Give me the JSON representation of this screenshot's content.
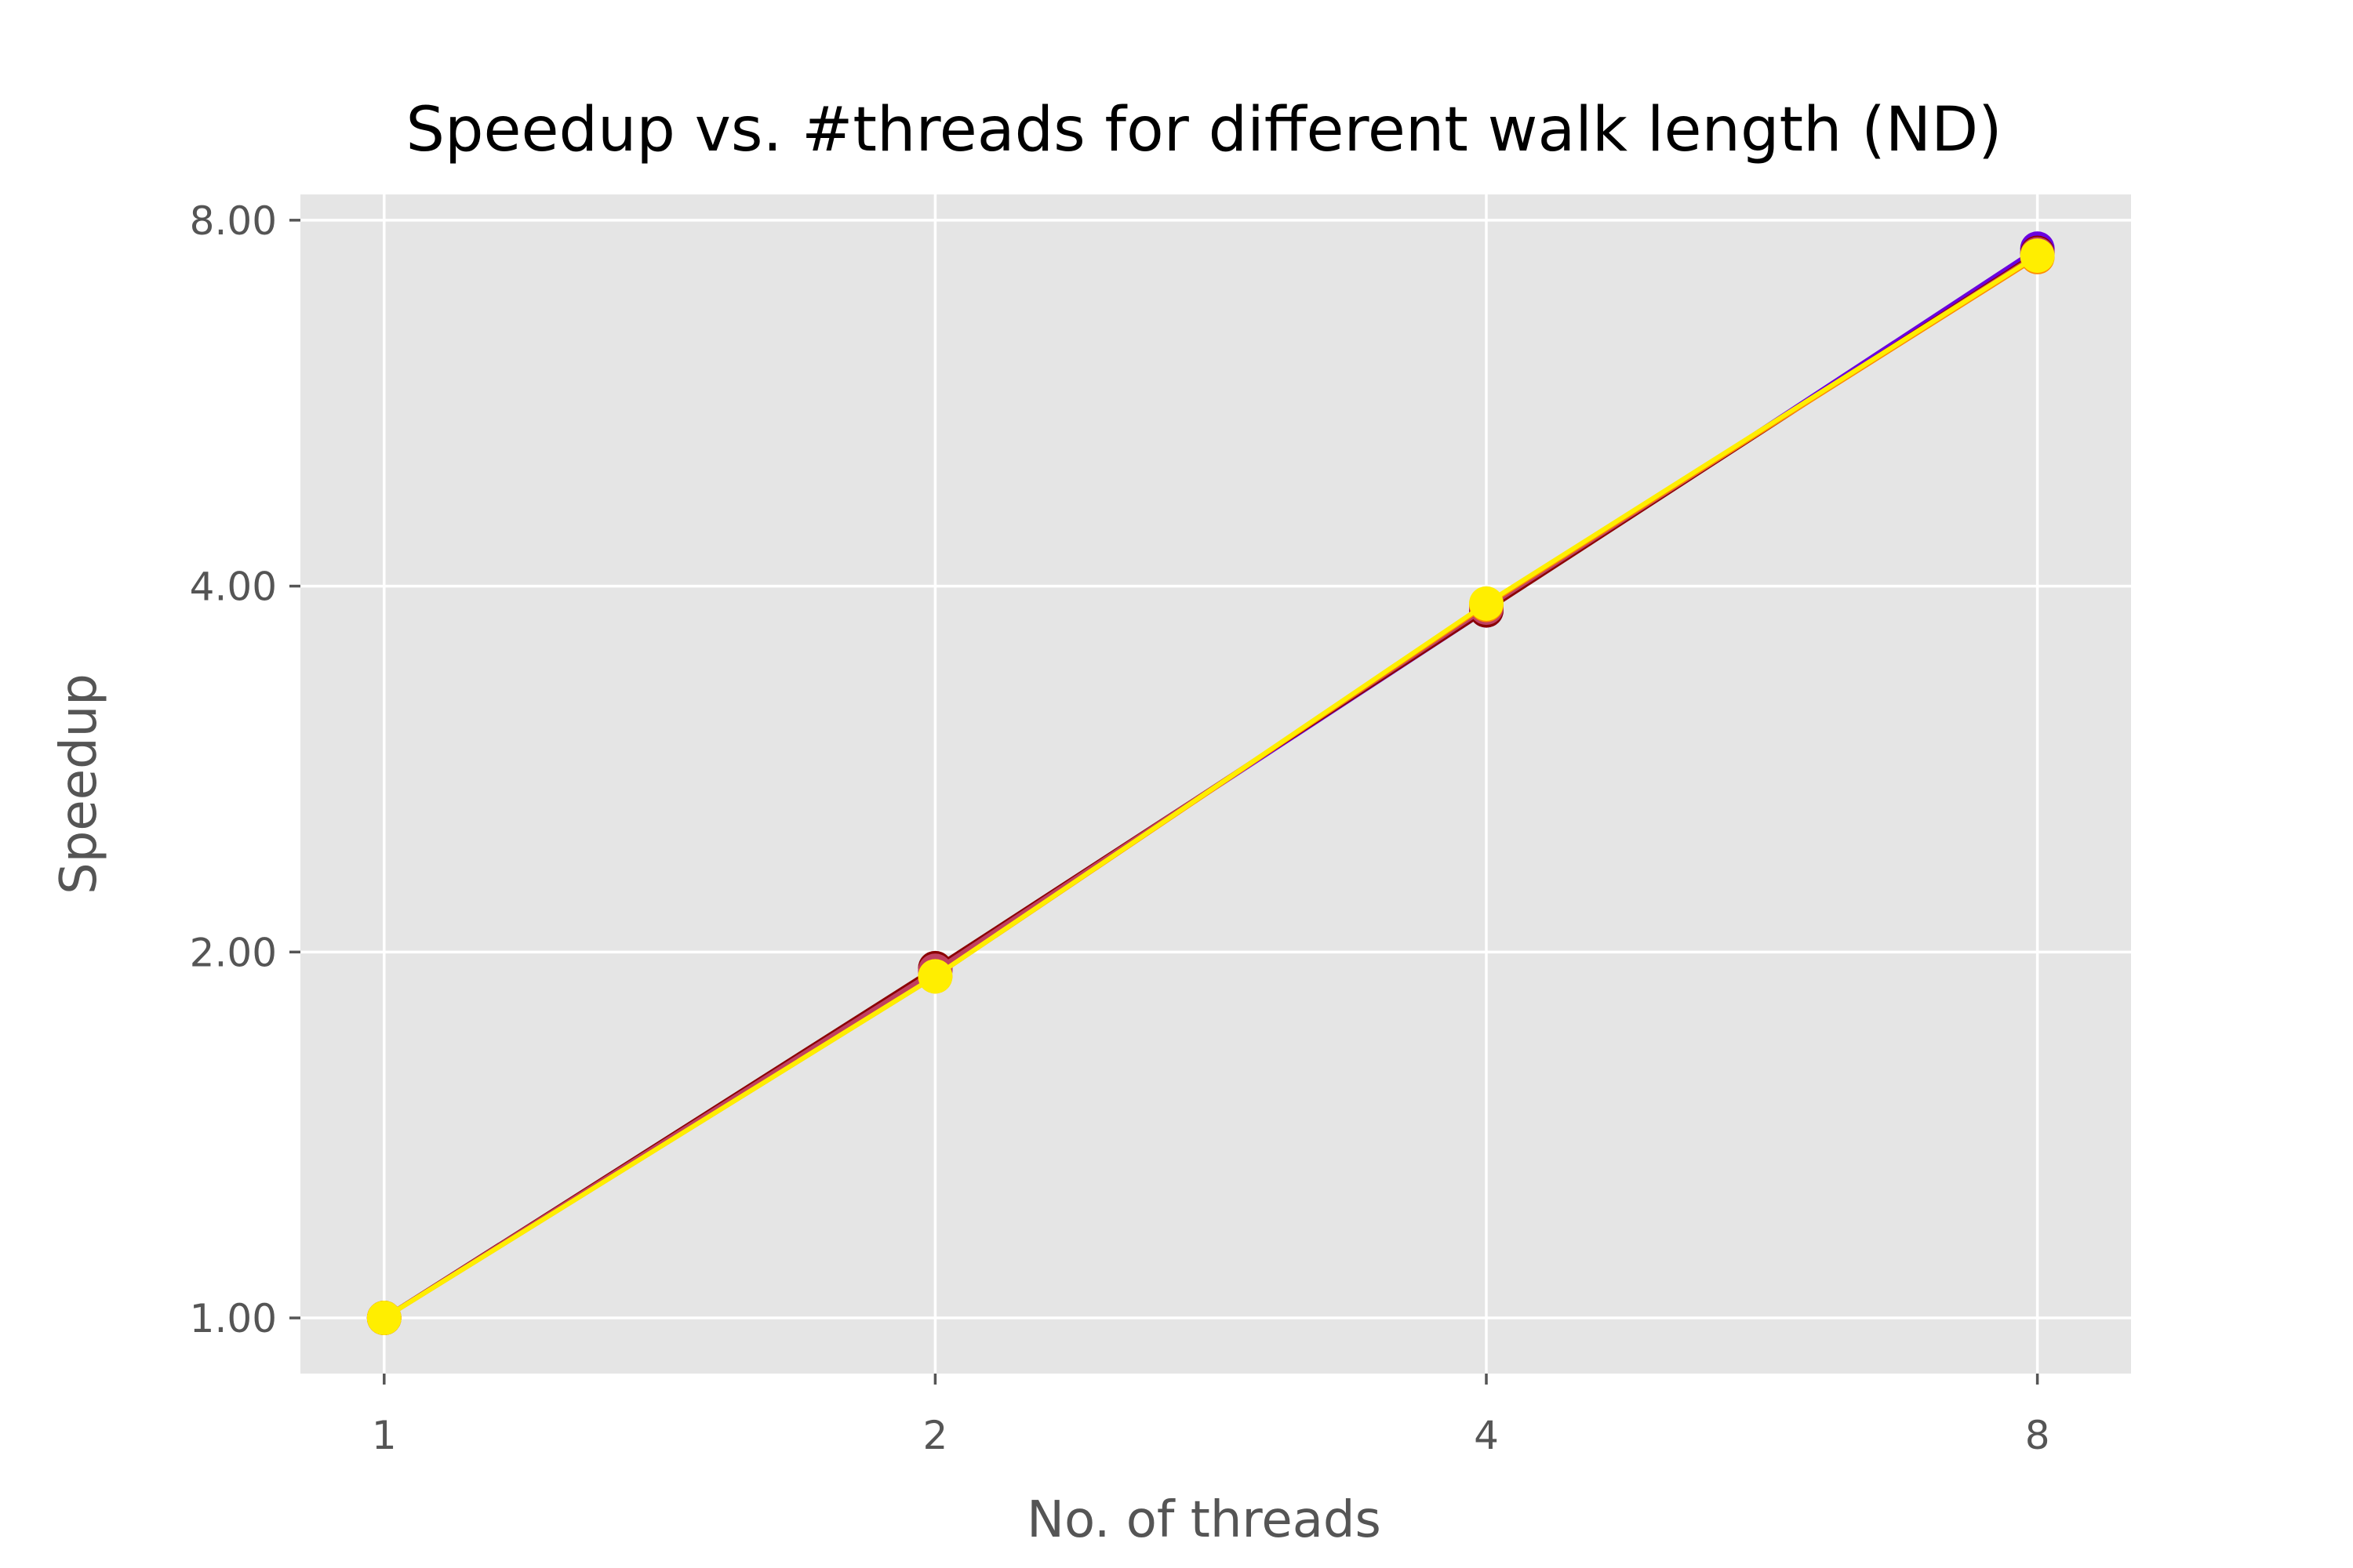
{
  "chart_data": {
    "type": "line",
    "title": "Speedup vs. #threads for different walk length (ND)",
    "xlabel": "No. of threads",
    "ylabel": "Speedup",
    "x": [
      1,
      2,
      4,
      8
    ],
    "x_scale": "log2",
    "y_scale": "log2",
    "xlim": [
      0.9,
      9.0
    ],
    "ylim": [
      0.9,
      8.4
    ],
    "xticks": [
      1,
      2,
      4,
      8
    ],
    "xtick_labels": [
      "1",
      "2",
      "4",
      "8"
    ],
    "yticks": [
      1,
      2,
      4,
      8
    ],
    "ytick_labels": [
      "1.00",
      "2.00",
      "4.00",
      "8.00"
    ],
    "grid": true,
    "legend": "none",
    "style": {
      "plot_background": "#e5e5e5",
      "grid_color": "#ffffff",
      "tick_label_color": "#555555"
    },
    "series": [
      {
        "color": "#6a00e0",
        "values": [
          1.0,
          1.93,
          3.82,
          7.58
        ]
      },
      {
        "color": "#8b0000",
        "values": [
          1.0,
          1.94,
          3.82,
          7.52
        ]
      },
      {
        "color": "#c04060",
        "values": [
          1.0,
          1.93,
          3.84,
          7.5
        ]
      },
      {
        "color": "#ff8c00",
        "values": [
          1.0,
          1.91,
          3.86,
          7.46
        ]
      },
      {
        "color": "#ffee00",
        "values": [
          1.0,
          1.91,
          3.87,
          7.48
        ]
      }
    ]
  }
}
